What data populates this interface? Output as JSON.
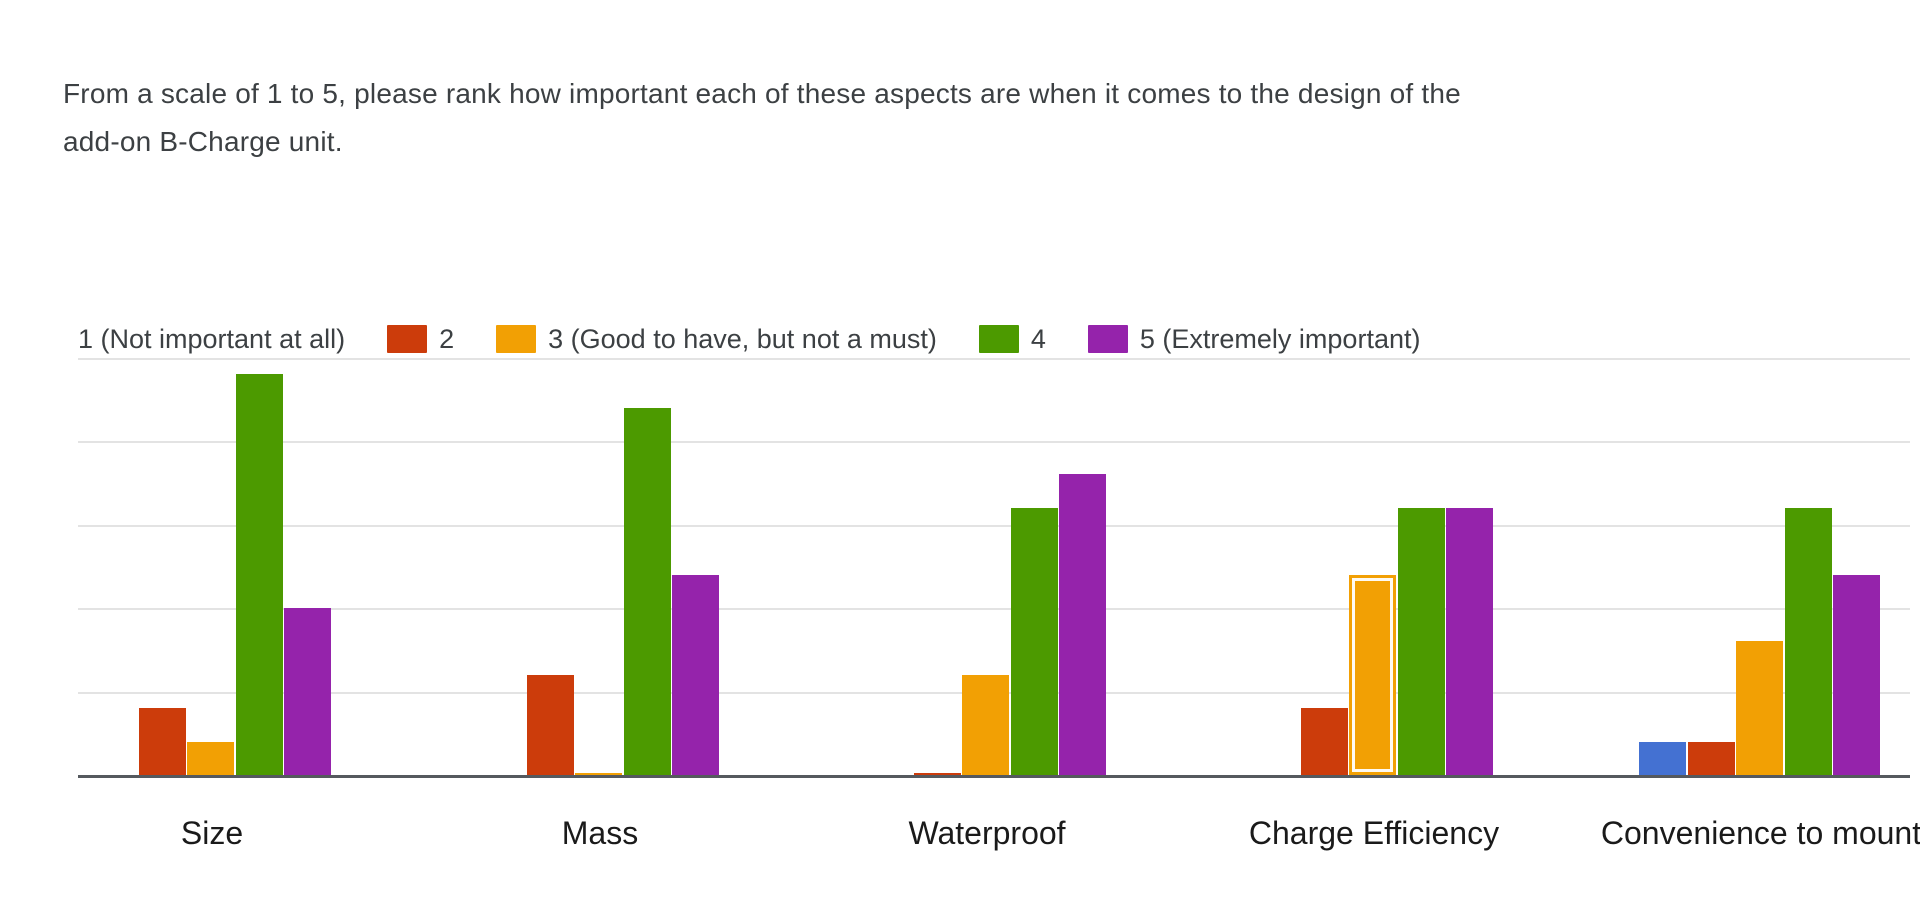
{
  "question": {
    "title": "From a scale of 1 to 5, please rank how important each of these aspects are when it comes to the design of the add-on B-Charge unit."
  },
  "chart_data": {
    "type": "bar",
    "categories": [
      "Size",
      "Mass",
      "Waterproof",
      "Charge Efficiency",
      "Convenience to mount"
    ],
    "series": [
      {
        "name": "1 (Not important at all)",
        "color": "#4471d2",
        "swatch_visible": false,
        "values": [
          0,
          0,
          0,
          0,
          1
        ]
      },
      {
        "name": "2",
        "color": "#cc3c0b",
        "swatch_visible": true,
        "values": [
          2,
          3,
          0,
          2,
          1
        ]
      },
      {
        "name": "3 (Good to have, but not a must)",
        "color": "#f2a004",
        "swatch_visible": true,
        "values": [
          1,
          0,
          3,
          6,
          4
        ]
      },
      {
        "name": "4",
        "color": "#4c9a00",
        "swatch_visible": true,
        "values": [
          12,
          11,
          8,
          8,
          8
        ]
      },
      {
        "name": "5 (Extremely important)",
        "color": "#9523ab",
        "swatch_visible": true,
        "values": [
          5,
          6,
          9,
          8,
          6
        ]
      }
    ],
    "xlabel": "",
    "ylabel": "",
    "ylim": [
      0,
      12.5
    ],
    "gridline_step": 2.5,
    "grid": true,
    "legend_position": "top",
    "y_axis_labels_visible": false,
    "highlighted_bar": {
      "category_index": 3,
      "series_index": 2
    },
    "zero_sliver_cells": [
      {
        "category_index": 1,
        "series_index": 2
      },
      {
        "category_index": 2,
        "series_index": 1
      }
    ],
    "colors": {
      "gridline": "#e3e3e3",
      "axis_line": "#55595e",
      "title_text": "#3c4043",
      "legend_text": "#3c4043",
      "category_text": "#1a1a1a"
    }
  }
}
